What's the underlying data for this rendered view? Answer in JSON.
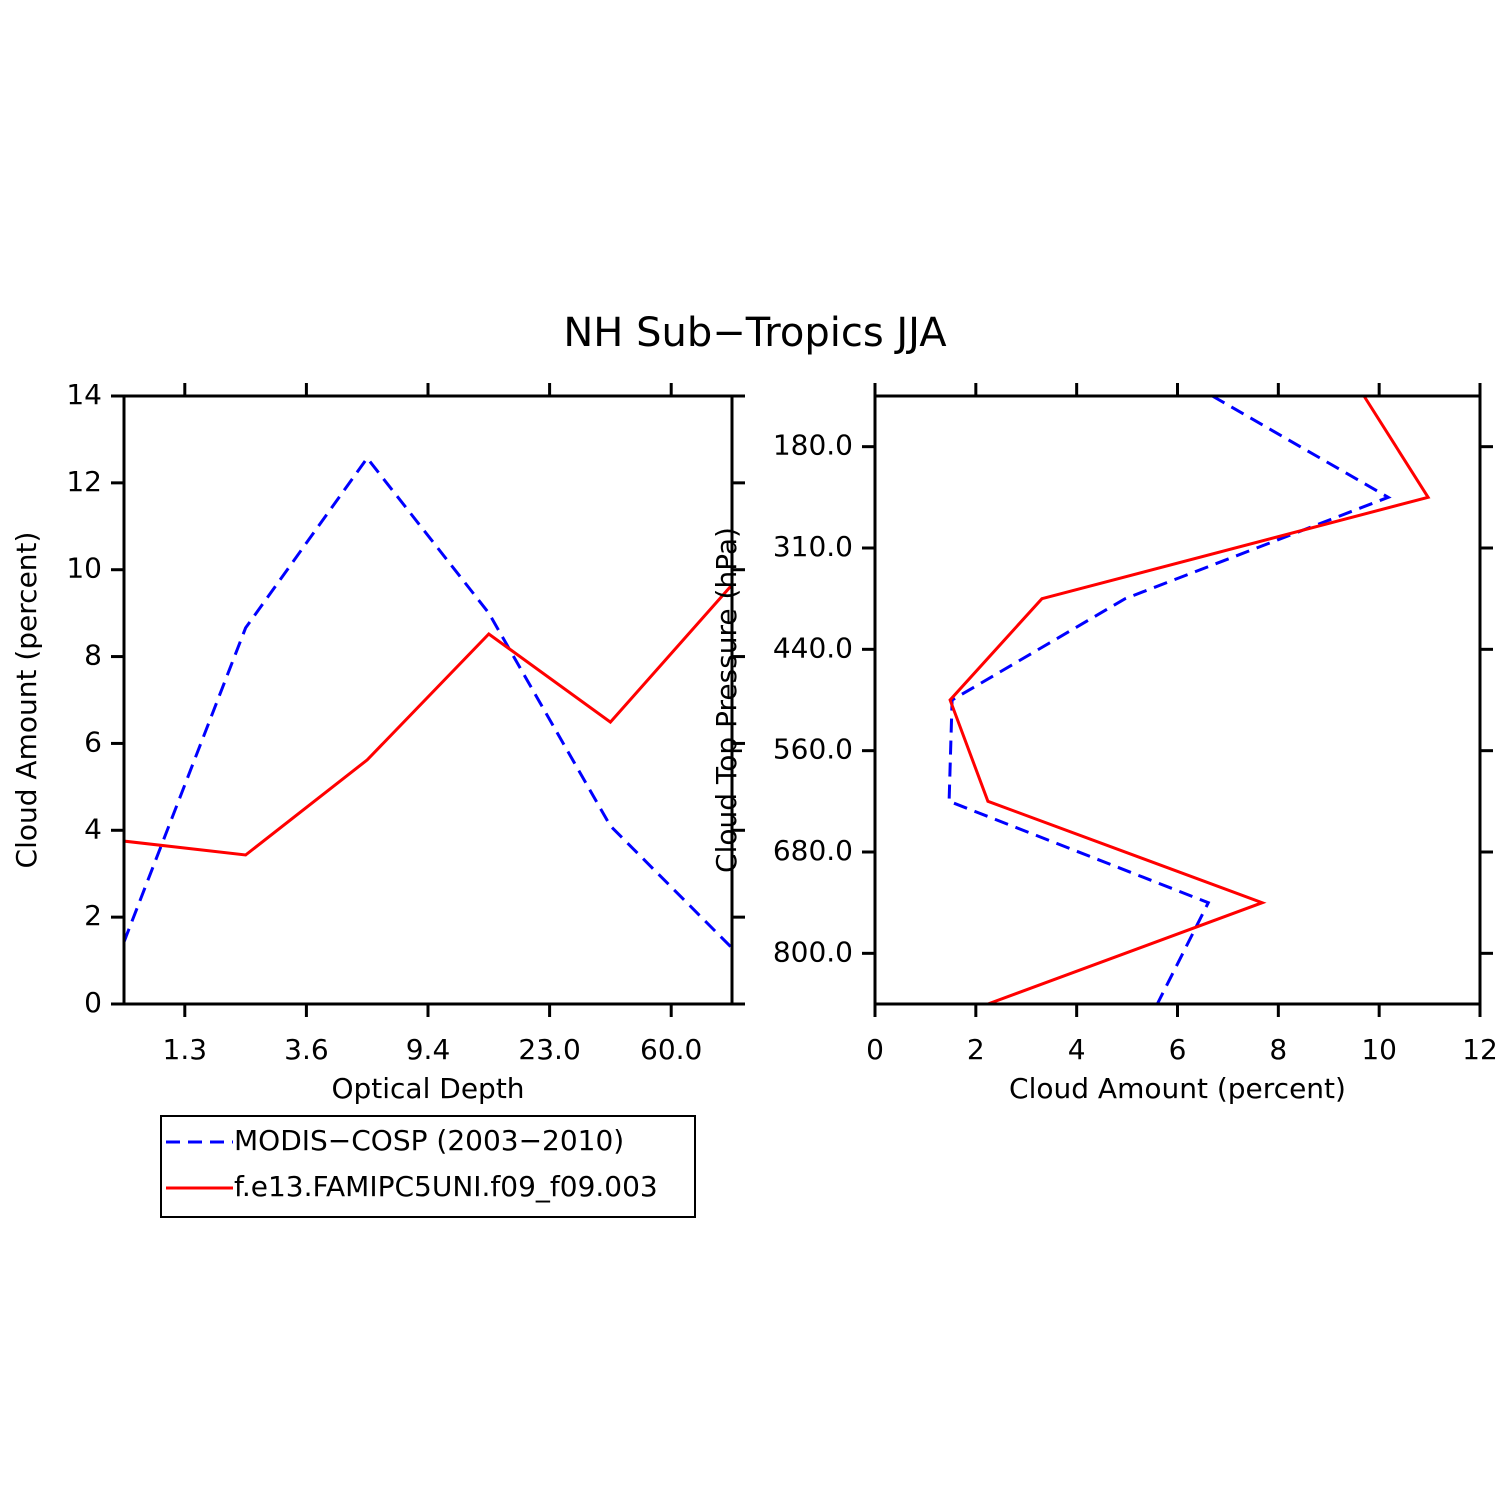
{
  "chart_data": [
    {
      "type": "line",
      "title": "NH Sub−Tropics JJA",
      "x_label": "Optical Depth",
      "y_label": "Cloud Amount (percent)",
      "x": [
        0,
        1,
        2,
        3,
        4,
        5
      ],
      "xlim": [
        0,
        5
      ],
      "xticks": [
        {
          "value": 0.5,
          "label": "1.3"
        },
        {
          "value": 1.5,
          "label": "3.6"
        },
        {
          "value": 2.5,
          "label": "9.4"
        },
        {
          "value": 3.5,
          "label": "23.0"
        },
        {
          "value": 4.5,
          "label": "60.0"
        }
      ],
      "ylim": [
        0,
        14
      ],
      "yticks": [
        0,
        2,
        4,
        6,
        8,
        10,
        12,
        14
      ],
      "legend": "below",
      "series": [
        {
          "name": "MODIS−COSP (2003−2010)",
          "color": "#0000ff",
          "dash": true,
          "values": [
            1.43,
            8.66,
            12.57,
            9.0,
            4.1,
            1.29
          ]
        },
        {
          "name": "f.e13.FAMIPC5UNI.f09_f09.003",
          "color": "#ff0000",
          "dash": false,
          "values": [
            3.75,
            3.43,
            5.62,
            8.52,
            6.49,
            9.65
          ]
        }
      ]
    },
    {
      "type": "line",
      "orientation": "horizontal",
      "x_label": "Cloud Amount (percent)",
      "y_label": "Cloud Top Pressure (hPa)",
      "y": [
        0,
        1,
        2,
        3,
        4,
        5,
        6
      ],
      "ylim": [
        6,
        0
      ],
      "yticks": [
        {
          "value": 0.5,
          "label": "180.0"
        },
        {
          "value": 1.5,
          "label": "310.0"
        },
        {
          "value": 2.5,
          "label": "440.0"
        },
        {
          "value": 3.5,
          "label": "560.0"
        },
        {
          "value": 4.5,
          "label": "680.0"
        },
        {
          "value": 5.5,
          "label": "800.0"
        }
      ],
      "xlim": [
        0,
        12
      ],
      "xticks": [
        0,
        2,
        4,
        6,
        8,
        10,
        12
      ],
      "series": [
        {
          "color": "#0000ff",
          "dash": true,
          "values": [
            6.69,
            10.18,
            4.96,
            1.53,
            1.47,
            6.61,
            5.6
          ]
        },
        {
          "color": "#ff0000",
          "dash": false,
          "values": [
            9.7,
            10.97,
            3.31,
            1.49,
            2.24,
            7.68,
            2.24
          ]
        }
      ]
    }
  ]
}
